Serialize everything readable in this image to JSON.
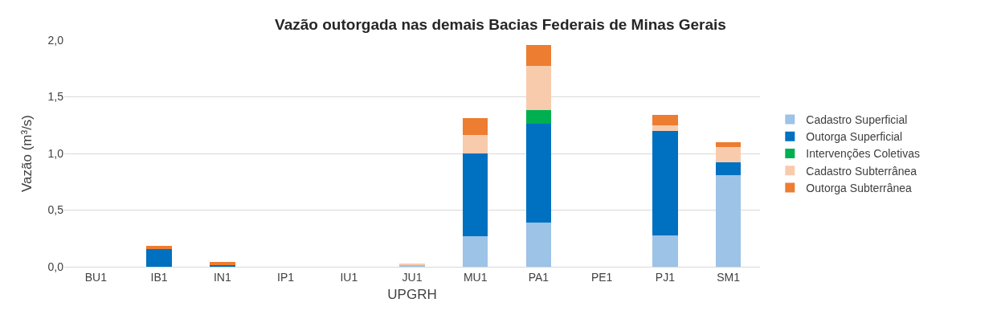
{
  "chart_data": {
    "type": "bar",
    "title": "Vazão outorgada nas demais Bacias Federais de Minas Gerais",
    "xlabel": "UPGRH",
    "ylabel": "Vazão (m³/s)",
    "categories": [
      "BU1",
      "IB1",
      "IN1",
      "IP1",
      "IU1",
      "JU1",
      "MU1",
      "PA1",
      "PE1",
      "PJ1",
      "SM1"
    ],
    "stacked": true,
    "series": [
      {
        "name": "Cadastro Superficial",
        "color": "#9dc3e6",
        "values": [
          0,
          0,
          0,
          0,
          0,
          0.015,
          0.27,
          0.39,
          0,
          0.28,
          0.81
        ]
      },
      {
        "name": "Outorga Superficial",
        "color": "#0070c0",
        "values": [
          0,
          0.155,
          0.015,
          0,
          0,
          0,
          0.73,
          0.87,
          0,
          0.92,
          0.11
        ]
      },
      {
        "name": "Intervenções Coletivas",
        "color": "#00b050",
        "values": [
          0,
          0,
          0,
          0,
          0,
          0,
          0,
          0.125,
          0,
          0,
          0
        ]
      },
      {
        "name": "Cadastro Subterrânea",
        "color": "#f8cbad",
        "values": [
          0,
          0,
          0,
          0,
          0,
          0.01,
          0.16,
          0.39,
          0,
          0.05,
          0.14
        ]
      },
      {
        "name": "Outorga Subterrânea",
        "color": "#ed7d31",
        "values": [
          0,
          0.03,
          0.025,
          0,
          0,
          0,
          0.15,
          0.18,
          0,
          0.09,
          0.04
        ]
      }
    ],
    "ylim": [
      0,
      2.0
    ],
    "yticks": [
      {
        "value": 0,
        "label": "0,0"
      },
      {
        "value": 0.5,
        "label": "0,5"
      },
      {
        "value": 1.0,
        "label": "1,0"
      },
      {
        "value": 1.5,
        "label": "1,5"
      },
      {
        "value": 2.0,
        "label": "2,0"
      }
    ],
    "grid": "y",
    "legend": "right"
  }
}
